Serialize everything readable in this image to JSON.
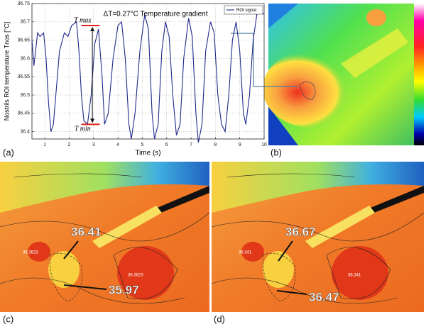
{
  "chart_data": {
    "type": "line",
    "x_label": "Time (s)",
    "y_label": "Nostrils ROI temperature Tnos [°C]",
    "x": [
      0.47,
      0.55,
      0.62,
      0.7,
      0.8,
      0.95,
      1.05,
      1.15,
      1.25,
      1.35,
      1.45,
      1.6,
      1.8,
      1.95,
      2.1,
      2.3,
      2.4,
      2.5,
      2.6,
      2.75,
      2.9,
      3.05,
      3.2,
      3.35,
      3.45,
      3.6,
      3.8,
      4.0,
      4.15,
      4.3,
      4.45,
      4.55,
      4.7,
      4.9,
      5.1,
      5.25,
      5.4,
      5.5,
      5.65,
      5.8,
      5.95,
      6.1,
      6.25,
      6.4,
      6.55,
      6.7,
      6.9,
      7.05,
      7.2,
      7.3,
      7.45,
      7.6,
      7.8,
      7.95,
      8.1,
      8.25,
      8.4,
      8.55,
      8.7,
      8.85,
      9.0,
      9.15,
      9.25,
      9.4,
      9.55,
      9.7,
      9.85,
      10.0
    ],
    "series": [
      {
        "name": "ROI signal",
        "color": "#1f2a8a",
        "values": [
          36.65,
          36.58,
          36.62,
          36.67,
          36.66,
          36.67,
          36.6,
          36.48,
          36.4,
          36.42,
          36.5,
          36.62,
          36.67,
          36.66,
          36.69,
          36.7,
          36.62,
          36.5,
          36.43,
          36.42,
          36.5,
          36.64,
          36.68,
          36.55,
          36.42,
          36.45,
          36.6,
          36.69,
          36.7,
          36.6,
          36.42,
          36.38,
          36.45,
          36.62,
          36.72,
          36.68,
          36.45,
          36.38,
          36.42,
          36.62,
          36.7,
          36.66,
          36.5,
          36.39,
          36.42,
          36.6,
          36.71,
          36.66,
          36.45,
          36.37,
          36.42,
          36.62,
          36.7,
          36.67,
          36.5,
          36.42,
          36.4,
          36.5,
          36.65,
          36.7,
          36.62,
          36.45,
          36.42,
          36.5,
          36.65,
          36.72,
          36.73,
          36.72
        ]
      }
    ],
    "xlim": [
      0.47,
      10
    ],
    "xticks": [
      1,
      2,
      3,
      4,
      5,
      6,
      7,
      8,
      9,
      10
    ],
    "ylim": [
      36.38,
      36.75
    ],
    "yticks": [
      36.4,
      36.45,
      36.5,
      36.55,
      36.6,
      36.65,
      36.7,
      36.75
    ],
    "grid": true,
    "legend": "upper right",
    "reference_lines": [
      {
        "label": "T max",
        "value": 36.69,
        "color": "#e0201c"
      },
      {
        "label": "T min",
        "value": 36.42,
        "color": "#e0201c"
      }
    ],
    "annotation": "ΔT=0.27°C Temperature gradient"
  },
  "panels": {
    "labels": [
      "(a)",
      "(b)",
      "(c)",
      "(d)"
    ],
    "c": {
      "values": [
        "36.41",
        "35.97"
      ],
      "spots": [
        "36.3623",
        "36.3623"
      ]
    },
    "d": {
      "values": [
        "36.67",
        "36.47"
      ],
      "spots": [
        "36.341",
        "36.341"
      ]
    }
  }
}
